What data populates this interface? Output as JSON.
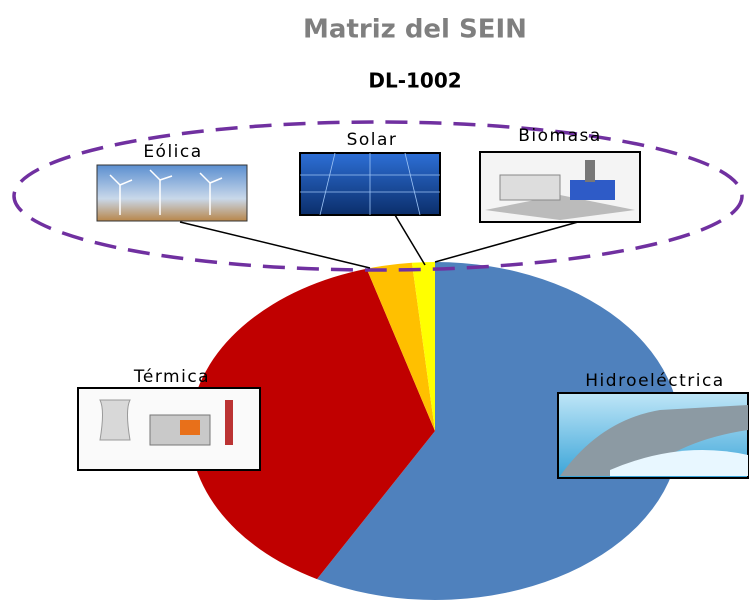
{
  "chart_data": {
    "type": "pie",
    "title": "Matriz del SEIN",
    "categories": [
      "Hidroeléctrica",
      "Térmica",
      null,
      null
    ],
    "values": [
      58,
      37.5,
      3,
      1.5
    ],
    "colors": [
      "#4f81bd",
      "#c00000",
      "#ffc000",
      "#ffff00"
    ],
    "group_label": "DL-1002",
    "callouts": [
      "Eólica",
      "Solar",
      "Biomasa"
    ]
  }
}
